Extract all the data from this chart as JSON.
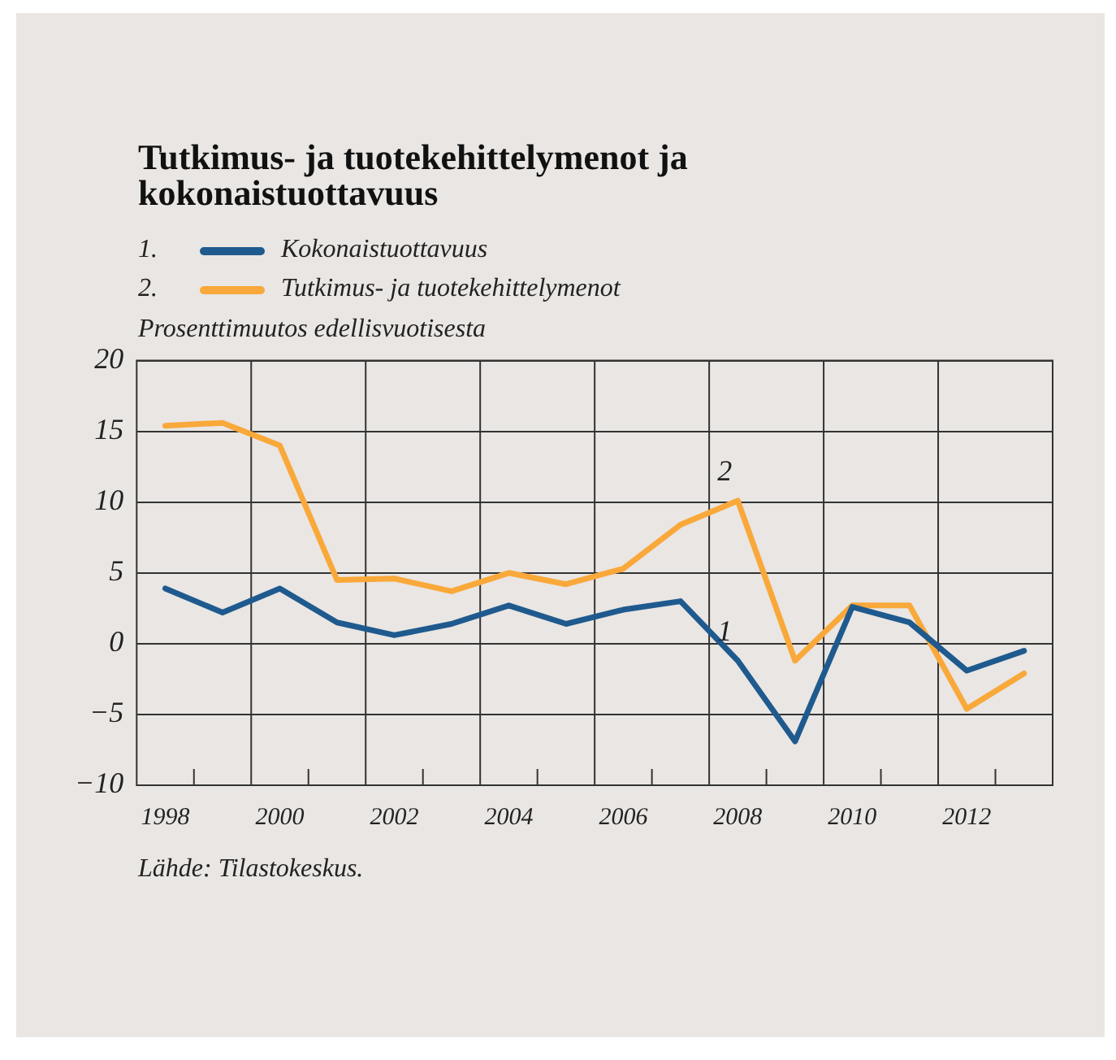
{
  "chart_data": {
    "type": "line",
    "title": "Tutkimus- ja tuotekehittelymenot ja kokonaistuottavuus",
    "ylabel": "Prosenttimuutos edellisvuotisesta",
    "categories": [
      "1998",
      null,
      "2000",
      null,
      "2002",
      null,
      "2004",
      null,
      "2006",
      null,
      "2008",
      null,
      "2010",
      null,
      "2012",
      null
    ],
    "series": [
      {
        "name": "Kokonaistuottavuus",
        "color": "#1f5a8e",
        "values": [
          3.9,
          2.2,
          3.9,
          1.5,
          0.6,
          1.4,
          2.7,
          1.4,
          2.4,
          3.0,
          -1.2,
          -6.9,
          2.6,
          1.5,
          -1.9,
          -0.5
        ]
      },
      {
        "name": "Tutkimus- ja tuotekehittelymenot",
        "color": "#f9a83a",
        "values": [
          15.4,
          15.6,
          14.0,
          4.5,
          4.6,
          3.7,
          5.0,
          4.2,
          5.3,
          8.4,
          10.1,
          -1.2,
          2.7,
          2.7,
          -4.6,
          -2.1
        ]
      }
    ],
    "ylim": [
      -10,
      20
    ],
    "yticks": [
      {
        "value": -10,
        "label": "−10"
      },
      {
        "value": -5,
        "label": "−5"
      },
      0,
      5,
      10,
      15,
      20
    ],
    "grid": true,
    "legend": "top left",
    "marker": "none",
    "line_style": "solid",
    "annotations": [
      {
        "text": "2",
        "x": "2008",
        "y": 10.1
      },
      {
        "text": "1",
        "x": "2008",
        "y": -1.2
      },
      "1.",
      "2.",
      "Lähde: Tilastokeskus."
    ]
  }
}
